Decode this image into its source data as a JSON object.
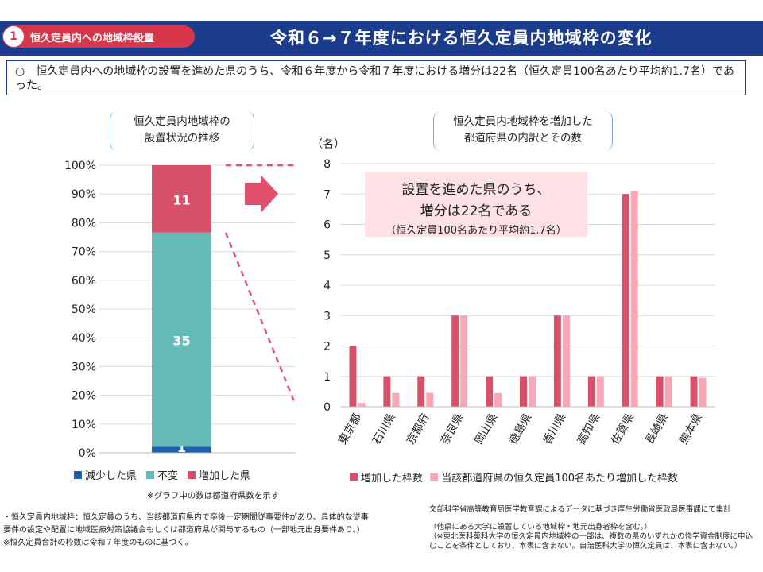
{
  "header": {
    "badge_number": "1",
    "badge_label": "恒久定員内への地域枠設置",
    "title": "令和６→７年度における恒久定員内地域枠の変化"
  },
  "summary": "○　恒久定員内への地域枠の設置を進めた県のうち、令和６年度から令和７年度における増分は22名（恒久定員100名あたり平均約1.7名）であった。",
  "left_heading": {
    "line1": "恒久定員内地域枠の",
    "line2": "設置状況の推移"
  },
  "right_heading": {
    "line1": "恒久定員内地域枠を増加した",
    "line2": "都道府県の内訳とその数"
  },
  "callout": {
    "line1": "設置を進めた県のうち、",
    "line2": "増分は22名である",
    "line3": "（恒久定員100名あたり平均約1.7名）"
  },
  "notes": [
    "・恒久定員内地域枠：恒久定員のうち、当該都道府県内で卒後一定期間従事要件があり、具体的な従事",
    "要件の設定や配置に地域医療対策協議会もしくは都道府県が関与するもの（一部地元出身要件あり。）",
    "※恒久定員合計の枠数は令和７年度のものに基づく。"
  ],
  "source": {
    "line1": "文部科学省高等教育局医学教育課によるデータに基づき厚生労働省医政局医事課にて集計",
    "line2": "（他県にある大学に設置している地域枠・地元出身者枠を含む。）",
    "line3": "（※東北医科薬科大学の恒久定員内地域枠の一部は、複数の県のいずれかの修学資金制度に申込",
    "line4": "むことを条件としており、本表に含まない。自治医科大学の恒久定員は、本表に含まない。）"
  },
  "colors": {
    "header_bg": "#1b3b8c",
    "badge": "#d8374b",
    "decreased": "#1f5fb0",
    "unchanged": "#65bcb6",
    "increased": "#d9506b",
    "per100": "#f8a8b5",
    "callout_bg": "#fde1e5",
    "arrow": "#e0506c"
  },
  "chart_data": [
    {
      "type": "bar",
      "stacked": true,
      "percent": true,
      "categories": [
        ""
      ],
      "series": [
        {
          "name": "減少した県",
          "values": [
            1
          ]
        },
        {
          "name": "不変",
          "values": [
            35
          ]
        },
        {
          "name": "増加した県",
          "values": [
            11
          ]
        }
      ],
      "ylim": [
        0,
        100
      ],
      "yticks": [
        "0%",
        "10%",
        "20%",
        "30%",
        "40%",
        "50%",
        "60%",
        "70%",
        "80%",
        "90%",
        "100%"
      ],
      "legend": [
        "減少した県",
        "不変",
        "増加した県"
      ],
      "legend_note": "※グラフ中の数は都道府県数を示す",
      "legend_position": "bottom"
    },
    {
      "type": "bar",
      "categories": [
        "東京都",
        "石川県",
        "京都府",
        "奈良県",
        "岡山県",
        "徳島県",
        "香川県",
        "高知県",
        "佐賀県",
        "長崎県",
        "熊本県"
      ],
      "series": [
        {
          "name": "増加した枠数",
          "values": [
            2,
            1,
            1,
            3,
            1,
            1,
            3,
            1,
            7,
            1,
            1
          ]
        },
        {
          "name": "当該都道府県の恒久定員100名あたり増加した枠数",
          "values": [
            0.13,
            0.45,
            0.46,
            3,
            0.45,
            1,
            3,
            1,
            7.1,
            1,
            0.95
          ]
        }
      ],
      "ylabel": "（名）",
      "ylim": [
        0,
        8
      ],
      "yticks": [
        "0",
        "1",
        "2",
        "3",
        "4",
        "5",
        "6",
        "7",
        "8"
      ],
      "legend_position": "bottom"
    }
  ]
}
